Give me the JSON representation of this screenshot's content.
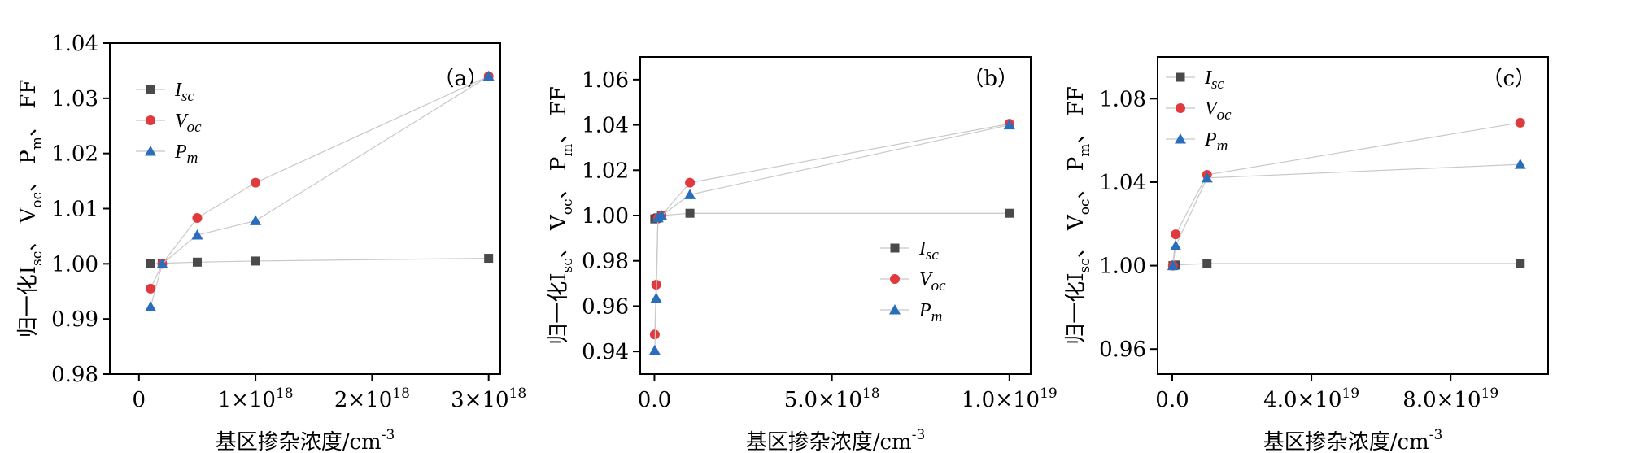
{
  "chart_data": [
    {
      "type": "scatter",
      "panel_label": "（a）",
      "xlabel": "基区掺杂浓度/cm",
      "xlabel_sup": "-3",
      "ylabel": "归一化I",
      "ylabel_rest": [
        "sc",
        "、 V",
        "oc",
        "、 P",
        "m",
        "、 FF"
      ],
      "xlim": [
        -2.5e+17,
        3.1e+18
      ],
      "ylim": [
        0.98,
        1.04
      ],
      "xticks": [
        {
          "value": 0,
          "label": "0"
        },
        {
          "value": 1e+18,
          "label": "1×10",
          "exp": "18"
        },
        {
          "value": 2e+18,
          "label": "2×10",
          "exp": "18"
        },
        {
          "value": 3e+18,
          "label": "3×10",
          "exp": "18"
        }
      ],
      "yticks": [
        {
          "value": 0.98,
          "label": "0.98"
        },
        {
          "value": 0.99,
          "label": "0.99"
        },
        {
          "value": 1.0,
          "label": "1.00"
        },
        {
          "value": 1.01,
          "label": "1.01"
        },
        {
          "value": 1.02,
          "label": "1.02"
        },
        {
          "value": 1.03,
          "label": "1.03"
        },
        {
          "value": 1.04,
          "label": "1.04"
        }
      ],
      "legend_position": "top-left",
      "series": [
        {
          "name": "I",
          "sub": "sc",
          "marker": "square",
          "color": "#4a4a4a",
          "x": [
            1e+17,
            2e+17,
            5e+17,
            1e+18,
            3e+18
          ],
          "y": [
            1.0,
            1.0001,
            1.0003,
            1.0005,
            1.001
          ]
        },
        {
          "name": "V",
          "sub": "oc",
          "marker": "circle",
          "color": "#e0393e",
          "x": [
            1e+17,
            2e+17,
            5e+17,
            1e+18,
            3e+18
          ],
          "y": [
            0.9955,
            1.0,
            1.0083,
            1.0147,
            1.034
          ]
        },
        {
          "name": "P",
          "sub": "m",
          "marker": "triangle",
          "color": "#2a6ebb",
          "x": [
            1e+17,
            2e+17,
            5e+17,
            1e+18,
            3e+18
          ],
          "y": [
            0.9922,
            1.0,
            1.0052,
            1.0078,
            1.034
          ]
        }
      ]
    },
    {
      "type": "scatter",
      "panel_label": "（b）",
      "xlabel": "基区掺杂浓度/cm",
      "xlabel_sup": "-3",
      "ylabel": "归一化I",
      "ylabel_rest": [
        "sc",
        "、 V",
        "oc",
        "、 P",
        "m",
        "、 FF"
      ],
      "xlim": [
        -4e+17,
        1.06e+19
      ],
      "ylim": [
        0.93,
        1.07
      ],
      "xticks": [
        {
          "value": 0,
          "label": "0.0"
        },
        {
          "value": 5e+18,
          "label": "5.0×10",
          "exp": "18"
        },
        {
          "value": 1e+19,
          "label": "1.0×10",
          "exp": "19"
        }
      ],
      "yticks": [
        {
          "value": 0.94,
          "label": "0.94"
        },
        {
          "value": 0.96,
          "label": "0.96"
        },
        {
          "value": 0.98,
          "label": "0.98"
        },
        {
          "value": 1.0,
          "label": "1.00"
        },
        {
          "value": 1.02,
          "label": "1.02"
        },
        {
          "value": 1.04,
          "label": "1.04"
        },
        {
          "value": 1.06,
          "label": "1.06"
        }
      ],
      "legend_position": "bottom-right",
      "series": [
        {
          "name": "I",
          "sub": "sc",
          "marker": "square",
          "color": "#4a4a4a",
          "x": [
            1e+16,
            5e+16,
            1e+17,
            2e+17,
            1e+18,
            1e+19
          ],
          "y": [
            0.9985,
            0.9987,
            0.999,
            1.0,
            1.001,
            1.001
          ]
        },
        {
          "name": "V",
          "sub": "oc",
          "marker": "circle",
          "color": "#e0393e",
          "x": [
            1e+16,
            5e+16,
            1e+17,
            2e+17,
            1e+18,
            1e+19
          ],
          "y": [
            0.9475,
            0.9695,
            0.999,
            1.0,
            1.0145,
            1.0405
          ]
        },
        {
          "name": "P",
          "sub": "m",
          "marker": "triangle",
          "color": "#2a6ebb",
          "x": [
            1e+16,
            5e+16,
            1e+17,
            2e+17,
            1e+18,
            1e+19
          ],
          "y": [
            0.9405,
            0.9635,
            0.999,
            1.0,
            1.0092,
            1.04
          ]
        }
      ]
    },
    {
      "type": "scatter",
      "panel_label": "（c）",
      "xlabel": "基区掺杂浓度/cm",
      "xlabel_sup": "-3",
      "ylabel": "归一化I",
      "ylabel_rest": [
        "sc",
        "、 V",
        "oc",
        "、 P",
        "m",
        "、 FF"
      ],
      "xlim": [
        -4.2e+18,
        1.08e+20
      ],
      "ylim": [
        0.948,
        1.1
      ],
      "xticks": [
        {
          "value": 0,
          "label": "0.0"
        },
        {
          "value": 4e+19,
          "label": "4.0×10",
          "exp": "19"
        },
        {
          "value": 8e+19,
          "label": "8.0×10",
          "exp": "19"
        }
      ],
      "yticks": [
        {
          "value": 0.96,
          "label": "0.96"
        },
        {
          "value": 1.0,
          "label": "1.00"
        },
        {
          "value": 1.04,
          "label": "1.04"
        },
        {
          "value": 1.08,
          "label": "1.08"
        }
      ],
      "legend_position": "top-left",
      "series": [
        {
          "name": "I",
          "sub": "sc",
          "marker": "square",
          "color": "#4a4a4a",
          "x": [
            2e+17,
            1e+18,
            1e+19,
            1e+20
          ],
          "y": [
            1.0,
            1.0003,
            1.001,
            1.001
          ]
        },
        {
          "name": "V",
          "sub": "oc",
          "marker": "circle",
          "color": "#e0393e",
          "x": [
            2e+17,
            1e+18,
            1e+19,
            1e+20
          ],
          "y": [
            1.0,
            1.015,
            1.0435,
            1.0685
          ]
        },
        {
          "name": "P",
          "sub": "m",
          "marker": "triangle",
          "color": "#2a6ebb",
          "x": [
            2e+17,
            1e+18,
            1e+19,
            1e+20
          ],
          "y": [
            1.0,
            1.0095,
            1.042,
            1.0485
          ]
        }
      ]
    }
  ]
}
